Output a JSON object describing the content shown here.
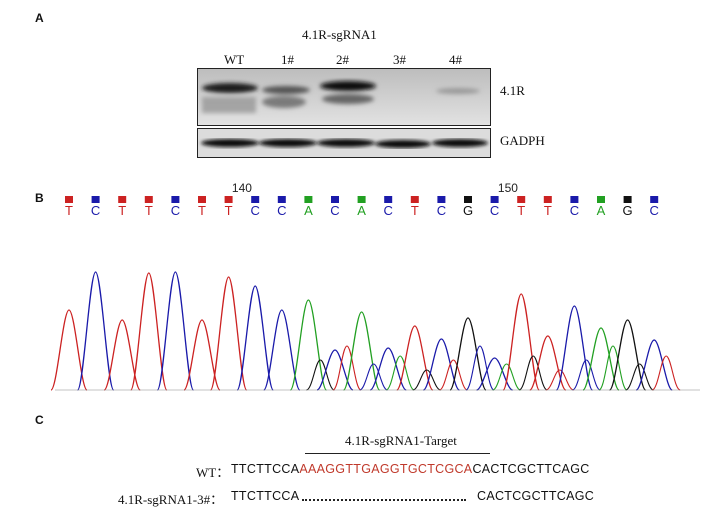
{
  "panels": {
    "a": "A",
    "b": "B",
    "c": "C"
  },
  "western": {
    "title": "4.1R-sgRNA1",
    "lanes": [
      "WT",
      "1#",
      "2#",
      "3#",
      "4#"
    ],
    "bands": [
      {
        "label": "4.1R",
        "intensity": [
          0.85,
          0.55,
          0.95,
          0.03,
          0.2
        ]
      },
      {
        "label": "GADPH",
        "intensity": [
          0.9,
          0.9,
          0.9,
          0.9,
          0.9
        ]
      }
    ]
  },
  "chromatogram": {
    "ruler": [
      "140",
      "150"
    ],
    "bases": [
      "T",
      "C",
      "T",
      "T",
      "C",
      "T",
      "T",
      "C",
      "C",
      "A",
      "C",
      "A",
      "C",
      "T",
      "C",
      "G",
      "C",
      "T",
      "T",
      "C",
      "A",
      "G",
      "C"
    ],
    "base_colors": {
      "T": "#cc2222",
      "C": "#1a1aaa",
      "A": "#22a022",
      "G": "#111111"
    }
  },
  "sequences": {
    "target_label": "4.1R-sgRNA1-Target",
    "wt_label": "WT：",
    "wt_prefix": "TTCTTCCA",
    "wt_target": "AAAGGTTGAGGTGCTCGCA",
    "wt_suffix": "CACTCGCTTCAGC",
    "mut_label": "4.1R-sgRNA1-3#：",
    "mut_prefix": "TTCTTCCA",
    "mut_suffix": "CACTCGCTTCAGC",
    "target_color": "#c0392b"
  }
}
